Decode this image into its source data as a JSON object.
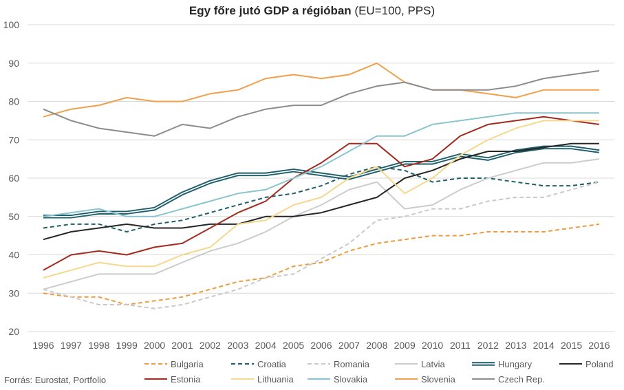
{
  "chart_data": {
    "type": "line",
    "title_bold": "Egy főre jutó GDP a régióban",
    "title_rest": " (EU=100, PPS)",
    "xlabel": "",
    "ylabel": "",
    "ylim": [
      20,
      100
    ],
    "yticks": [
      20,
      30,
      40,
      50,
      60,
      70,
      80,
      90,
      100
    ],
    "grid": "horizontal",
    "legend_position": "bottom",
    "x": [
      1996,
      1997,
      1998,
      1999,
      2000,
      2001,
      2002,
      2003,
      2004,
      2005,
      2006,
      2007,
      2008,
      2009,
      2010,
      2011,
      2012,
      2013,
      2014,
      2015,
      2016
    ],
    "series": [
      {
        "name": "Bulgaria",
        "color": "#ED9B3C",
        "style": "dashed",
        "values": [
          30,
          29,
          29,
          27,
          28,
          29,
          31,
          33,
          34,
          37,
          38,
          41,
          43,
          44,
          45,
          45,
          46,
          46,
          46,
          47,
          48
        ]
      },
      {
        "name": "Croatia",
        "color": "#1F5F6B",
        "style": "dashed",
        "values": [
          47,
          48,
          48,
          46,
          48,
          49,
          51,
          53,
          55,
          56,
          58,
          61,
          63,
          62,
          59,
          60,
          60,
          59,
          58,
          58,
          59
        ]
      },
      {
        "name": "Romania",
        "color": "#C9C9C9",
        "style": "dashed",
        "values": [
          31,
          29,
          27,
          27,
          26,
          27,
          29,
          31,
          34,
          35,
          39,
          43,
          49,
          50,
          52,
          52,
          54,
          55,
          55,
          57,
          59
        ]
      },
      {
        "name": "Latvia",
        "color": "#CCCCCC",
        "style": "solid",
        "values": [
          31,
          33,
          35,
          35,
          35,
          38,
          41,
          43,
          46,
          50,
          53,
          57,
          59,
          52,
          53,
          57,
          60,
          62,
          64,
          64,
          65
        ]
      },
      {
        "name": "Hungary",
        "color": "#1F5F6B",
        "style": "double",
        "values": [
          50,
          50,
          51,
          51,
          52,
          56,
          59,
          61,
          61,
          62,
          61,
          60,
          62,
          64,
          64,
          66,
          65,
          67,
          68,
          68,
          67
        ]
      },
      {
        "name": "Poland",
        "color": "#262626",
        "style": "solid",
        "values": [
          44,
          46,
          47,
          48,
          47,
          47,
          48,
          48,
          50,
          50,
          51,
          53,
          55,
          60,
          62,
          65,
          67,
          67,
          68,
          69,
          69
        ]
      },
      {
        "name": "Estonia",
        "color": "#A32A1F",
        "style": "solid",
        "values": [
          36,
          40,
          41,
          40,
          42,
          43,
          47,
          51,
          54,
          60,
          64,
          69,
          69,
          63,
          65,
          71,
          74,
          75,
          76,
          75,
          74
        ]
      },
      {
        "name": "Lithuania",
        "color": "#F5D88E",
        "style": "solid",
        "values": [
          34,
          36,
          38,
          37,
          37,
          40,
          42,
          48,
          49,
          53,
          55,
          60,
          63,
          56,
          60,
          66,
          70,
          73,
          75,
          75,
          75
        ]
      },
      {
        "name": "Slovakia",
        "color": "#8AC4CE",
        "style": "solid",
        "values": [
          50,
          51,
          52,
          50,
          50,
          52,
          54,
          56,
          57,
          60,
          63,
          67,
          71,
          71,
          74,
          75,
          76,
          77,
          77,
          77,
          77
        ]
      },
      {
        "name": "Slovenia",
        "color": "#F0A04B",
        "style": "solid",
        "values": [
          76,
          78,
          79,
          81,
          80,
          80,
          82,
          83,
          86,
          87,
          86,
          87,
          90,
          85,
          83,
          83,
          82,
          81,
          83,
          83,
          83
        ]
      },
      {
        "name": "Czech Rep.",
        "color": "#8C8C8C",
        "style": "solid",
        "values": [
          78,
          75,
          73,
          72,
          71,
          74,
          73,
          76,
          78,
          79,
          79,
          82,
          84,
          85,
          83,
          83,
          83,
          84,
          86,
          87,
          88
        ]
      }
    ]
  },
  "source": "Forrás: Eurostat, Portfolio"
}
